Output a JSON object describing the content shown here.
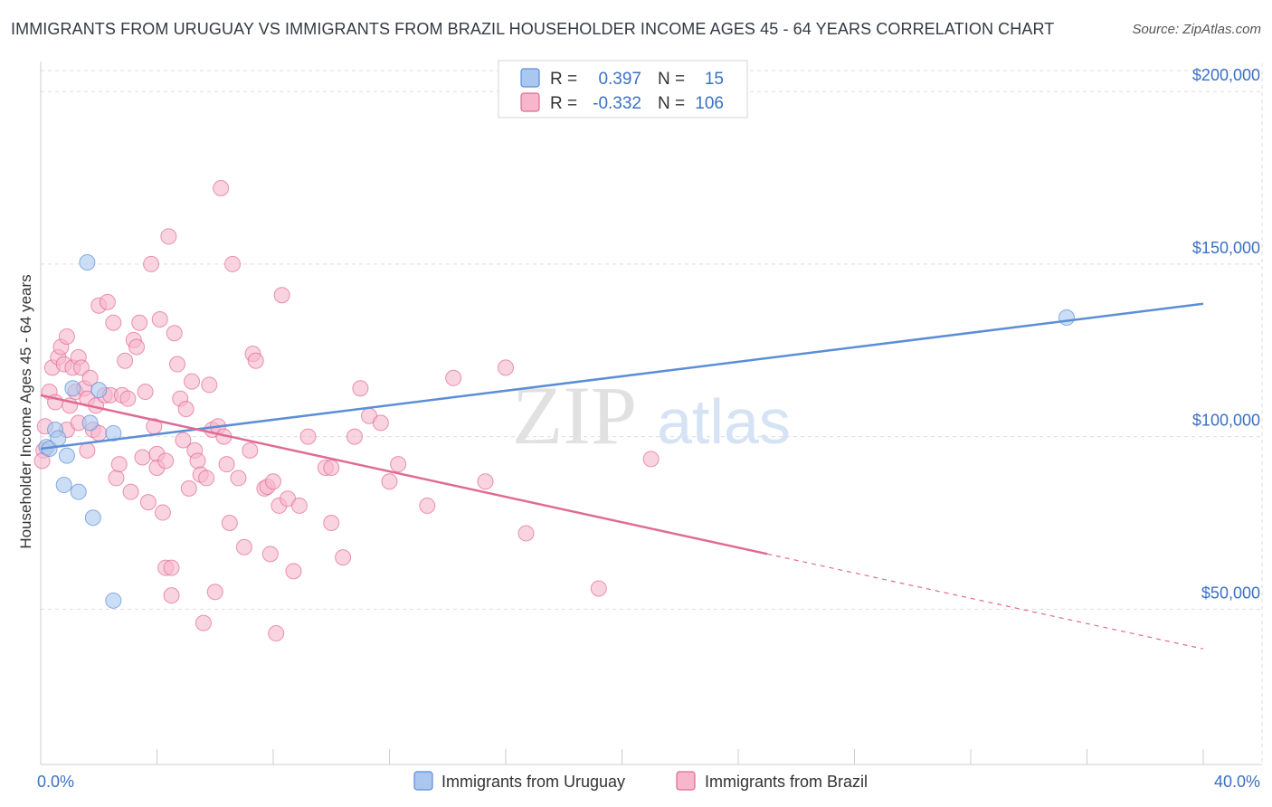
{
  "title": "IMMIGRANTS FROM URUGUAY VS IMMIGRANTS FROM BRAZIL HOUSEHOLDER INCOME AGES 45 - 64 YEARS CORRELATION CHART",
  "source": "Source: ZipAtlas.com",
  "watermark": {
    "zip": "ZIP",
    "atlas": "atlas"
  },
  "colors": {
    "uruguay": "#5b8ed6",
    "uruguay_fill": "#aac8ef",
    "brazil": "#e06a94",
    "brazil_fill": "#f7b6cb",
    "axis_text": "#3a70c6",
    "grid": "#dddddd"
  },
  "legend": {
    "r_label": "R =",
    "n_label": "N =",
    "rows": [
      {
        "series": "uruguay",
        "r": "0.397",
        "n": "15"
      },
      {
        "series": "brazil",
        "r": "-0.332",
        "n": "106"
      }
    ]
  },
  "chart_data": {
    "type": "scatter",
    "title": "IMMIGRANTS FROM URUGUAY VS IMMIGRANTS FROM BRAZIL HOUSEHOLDER INCOME AGES 45 - 64 YEARS CORRELATION CHART",
    "xlabel": "",
    "ylabel": "Householder Income Ages 45 - 64 years",
    "xlim": [
      0,
      40
    ],
    "ylim": [
      5000,
      215000
    ],
    "x_tick_labels": [
      "0.0%",
      "40.0%"
    ],
    "y_ticks": [
      50000,
      100000,
      150000,
      200000
    ],
    "y_tick_labels": [
      "$50,000",
      "$100,000",
      "$150,000",
      "$200,000"
    ],
    "grid": true,
    "legend": "top-center",
    "series": [
      {
        "name": "Immigrants from Uruguay",
        "key": "uruguay",
        "trend": {
          "x": [
            0.0,
            40.0
          ],
          "y": [
            96500,
            138500
          ]
        },
        "points": [
          {
            "x": 0.2,
            "y": 97000
          },
          {
            "x": 0.3,
            "y": 96500
          },
          {
            "x": 0.5,
            "y": 102000
          },
          {
            "x": 0.6,
            "y": 99500
          },
          {
            "x": 0.8,
            "y": 86000
          },
          {
            "x": 0.9,
            "y": 94500
          },
          {
            "x": 1.1,
            "y": 114000
          },
          {
            "x": 1.3,
            "y": 84000
          },
          {
            "x": 1.6,
            "y": 150500
          },
          {
            "x": 1.7,
            "y": 104000
          },
          {
            "x": 1.8,
            "y": 76500
          },
          {
            "x": 2.0,
            "y": 113500
          },
          {
            "x": 2.5,
            "y": 101000
          },
          {
            "x": 2.5,
            "y": 52500
          },
          {
            "x": 35.3,
            "y": 134500
          }
        ]
      },
      {
        "name": "Immigrants from Brazil",
        "key": "brazil",
        "trend": {
          "x": [
            0.0,
            25.0
          ],
          "y": [
            112000,
            66000
          ]
        },
        "trend_dashed": {
          "x": [
            25.0,
            40.0
          ],
          "y": [
            66000,
            38500
          ]
        },
        "points": [
          {
            "x": 0.1,
            "y": 96000
          },
          {
            "x": 0.15,
            "y": 103000
          },
          {
            "x": 0.3,
            "y": 113000
          },
          {
            "x": 0.4,
            "y": 120000
          },
          {
            "x": 0.5,
            "y": 110000
          },
          {
            "x": 0.6,
            "y": 123000
          },
          {
            "x": 0.7,
            "y": 126000
          },
          {
            "x": 0.8,
            "y": 121000
          },
          {
            "x": 0.9,
            "y": 102000
          },
          {
            "x": 0.9,
            "y": 129000
          },
          {
            "x": 1.0,
            "y": 109000
          },
          {
            "x": 1.1,
            "y": 120000
          },
          {
            "x": 1.2,
            "y": 113000
          },
          {
            "x": 1.3,
            "y": 123000
          },
          {
            "x": 1.3,
            "y": 104000
          },
          {
            "x": 1.4,
            "y": 120000
          },
          {
            "x": 1.5,
            "y": 114000
          },
          {
            "x": 1.6,
            "y": 111000
          },
          {
            "x": 1.6,
            "y": 96000
          },
          {
            "x": 1.7,
            "y": 117000
          },
          {
            "x": 1.8,
            "y": 102000
          },
          {
            "x": 1.9,
            "y": 109000
          },
          {
            "x": 2.0,
            "y": 138000
          },
          {
            "x": 2.0,
            "y": 101000
          },
          {
            "x": 2.2,
            "y": 112000
          },
          {
            "x": 2.3,
            "y": 139000
          },
          {
            "x": 2.4,
            "y": 112000
          },
          {
            "x": 2.5,
            "y": 133000
          },
          {
            "x": 2.6,
            "y": 88000
          },
          {
            "x": 2.7,
            "y": 92000
          },
          {
            "x": 2.8,
            "y": 112000
          },
          {
            "x": 2.9,
            "y": 122000
          },
          {
            "x": 3.0,
            "y": 111000
          },
          {
            "x": 3.1,
            "y": 84000
          },
          {
            "x": 3.2,
            "y": 128000
          },
          {
            "x": 3.3,
            "y": 126000
          },
          {
            "x": 3.4,
            "y": 133000
          },
          {
            "x": 3.5,
            "y": 94000
          },
          {
            "x": 3.6,
            "y": 113000
          },
          {
            "x": 3.7,
            "y": 81000
          },
          {
            "x": 3.8,
            "y": 150000
          },
          {
            "x": 3.9,
            "y": 103000
          },
          {
            "x": 4.0,
            "y": 95000
          },
          {
            "x": 4.0,
            "y": 91000
          },
          {
            "x": 4.1,
            "y": 134000
          },
          {
            "x": 4.2,
            "y": 78000
          },
          {
            "x": 4.3,
            "y": 93000
          },
          {
            "x": 4.3,
            "y": 62000
          },
          {
            "x": 4.4,
            "y": 158000
          },
          {
            "x": 4.5,
            "y": 54000
          },
          {
            "x": 4.5,
            "y": 62000
          },
          {
            "x": 4.6,
            "y": 130000
          },
          {
            "x": 4.7,
            "y": 121000
          },
          {
            "x": 4.8,
            "y": 111000
          },
          {
            "x": 4.9,
            "y": 99000
          },
          {
            "x": 5.0,
            "y": 108000
          },
          {
            "x": 5.1,
            "y": 85000
          },
          {
            "x": 5.2,
            "y": 116000
          },
          {
            "x": 5.3,
            "y": 96000
          },
          {
            "x": 5.4,
            "y": 93000
          },
          {
            "x": 5.5,
            "y": 89000
          },
          {
            "x": 5.6,
            "y": 46000
          },
          {
            "x": 5.7,
            "y": 88000
          },
          {
            "x": 5.8,
            "y": 115000
          },
          {
            "x": 5.9,
            "y": 102000
          },
          {
            "x": 6.0,
            "y": 55000
          },
          {
            "x": 6.1,
            "y": 103000
          },
          {
            "x": 6.2,
            "y": 172000
          },
          {
            "x": 6.3,
            "y": 100000
          },
          {
            "x": 6.4,
            "y": 92000
          },
          {
            "x": 6.5,
            "y": 75000
          },
          {
            "x": 6.6,
            "y": 150000
          },
          {
            "x": 6.8,
            "y": 88000
          },
          {
            "x": 7.0,
            "y": 68000
          },
          {
            "x": 7.2,
            "y": 96000
          },
          {
            "x": 7.3,
            "y": 124000
          },
          {
            "x": 7.4,
            "y": 122000
          },
          {
            "x": 7.7,
            "y": 85000
          },
          {
            "x": 7.8,
            "y": 85500
          },
          {
            "x": 7.9,
            "y": 66000
          },
          {
            "x": 8.0,
            "y": 87000
          },
          {
            "x": 8.1,
            "y": 43000
          },
          {
            "x": 8.2,
            "y": 80000
          },
          {
            "x": 8.3,
            "y": 141000
          },
          {
            "x": 8.5,
            "y": 82000
          },
          {
            "x": 8.7,
            "y": 61000
          },
          {
            "x": 8.9,
            "y": 80000
          },
          {
            "x": 9.2,
            "y": 100000
          },
          {
            "x": 9.8,
            "y": 91000
          },
          {
            "x": 10.0,
            "y": 75000
          },
          {
            "x": 10.0,
            "y": 91000
          },
          {
            "x": 10.4,
            "y": 65000
          },
          {
            "x": 10.8,
            "y": 100000
          },
          {
            "x": 11.0,
            "y": 114000
          },
          {
            "x": 11.3,
            "y": 106000
          },
          {
            "x": 11.7,
            "y": 104000
          },
          {
            "x": 12.0,
            "y": 87000
          },
          {
            "x": 12.3,
            "y": 92000
          },
          {
            "x": 13.3,
            "y": 80000
          },
          {
            "x": 14.2,
            "y": 117000
          },
          {
            "x": 15.3,
            "y": 87000
          },
          {
            "x": 16.0,
            "y": 120000
          },
          {
            "x": 16.7,
            "y": 72000
          },
          {
            "x": 19.2,
            "y": 56000
          },
          {
            "x": 21.0,
            "y": 93500
          },
          {
            "x": 0.05,
            "y": 93000
          }
        ]
      }
    ]
  },
  "bottom_legend": [
    {
      "series": "uruguay",
      "label": "Immigrants from Uruguay"
    },
    {
      "series": "brazil",
      "label": "Immigrants from Brazil"
    }
  ]
}
